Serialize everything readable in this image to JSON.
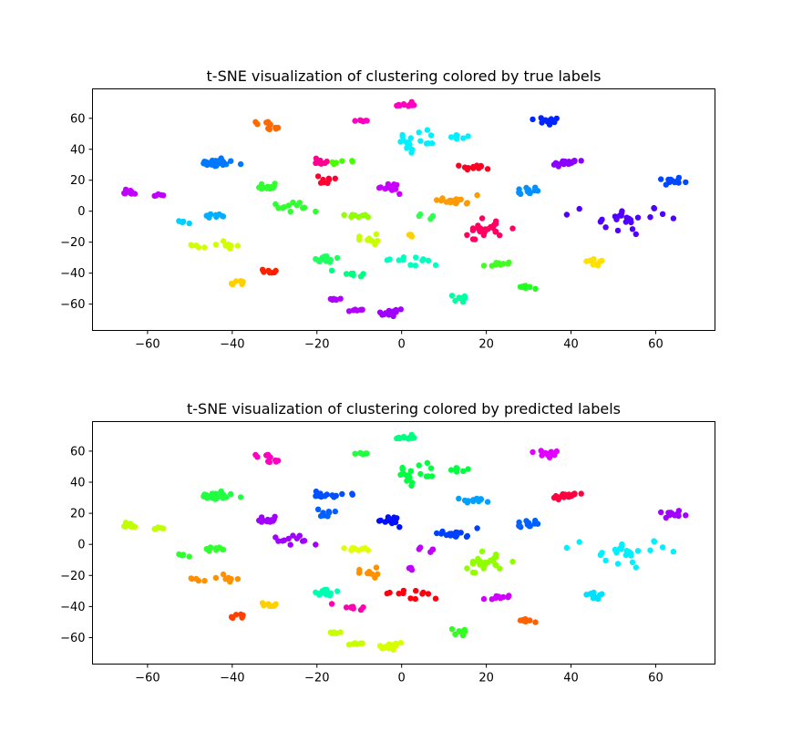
{
  "chart_data": [
    {
      "type": "scatter",
      "title": "t-SNE visualization of clustering colored by true labels",
      "xlim": [
        -73,
        74
      ],
      "ylim": [
        -77,
        79
      ],
      "xticks": [
        -60,
        -40,
        -20,
        0,
        20,
        40,
        60
      ],
      "xtick_labels": [
        "−60",
        "−40",
        "−20",
        "0",
        "20",
        "40",
        "60"
      ],
      "yticks": [
        -60,
        -40,
        -20,
        0,
        20,
        40,
        60
      ],
      "ytick_labels": [
        "−60",
        "−40",
        "−20",
        "0",
        "20",
        "40",
        "60"
      ],
      "grid": false,
      "clusters": [
        {
          "x": 1,
          "y": 69,
          "n": 10,
          "sx": 1.2,
          "sy": 1,
          "color": "#ff00c0"
        },
        {
          "x": -10,
          "y": 58,
          "n": 6,
          "sx": 1,
          "sy": 0.6,
          "color": "#ff00c0"
        },
        {
          "x": -32,
          "y": 57,
          "n": 6,
          "sx": 1,
          "sy": 0.6,
          "color": "#ff6a00"
        },
        {
          "x": -30,
          "y": 53,
          "n": 6,
          "sx": 1,
          "sy": 0.6,
          "color": "#ff6a00"
        },
        {
          "x": 3,
          "y": 46,
          "n": 18,
          "sx": 3,
          "sy": 3,
          "color": "#00f0ff"
        },
        {
          "x": 13,
          "y": 48,
          "n": 6,
          "sx": 1,
          "sy": 0.5,
          "color": "#00f0ff"
        },
        {
          "x": 34,
          "y": 59,
          "n": 10,
          "sx": 2,
          "sy": 1.5,
          "color": "#0024ff"
        },
        {
          "x": -44,
          "y": 31,
          "n": 24,
          "sx": 1.8,
          "sy": 1.5,
          "color": "#0078ff"
        },
        {
          "x": -19,
          "y": 32,
          "n": 8,
          "sx": 1,
          "sy": 1.5,
          "color": "#ff0090"
        },
        {
          "x": -14,
          "y": 32,
          "n": 6,
          "sx": 1.5,
          "sy": 1,
          "color": "#48ff00"
        },
        {
          "x": -18,
          "y": 20,
          "n": 8,
          "sx": 1.5,
          "sy": 1.5,
          "color": "#ff0030"
        },
        {
          "x": 18,
          "y": 28,
          "n": 12,
          "sx": 2,
          "sy": 1,
          "color": "#ff0020"
        },
        {
          "x": 38,
          "y": 31,
          "n": 18,
          "sx": 2,
          "sy": 1,
          "color": "#8c00ff"
        },
        {
          "x": 64,
          "y": 20,
          "n": 12,
          "sx": 2,
          "sy": 1,
          "color": "#0048ff"
        },
        {
          "x": 29,
          "y": 13,
          "n": 12,
          "sx": 2,
          "sy": 1,
          "color": "#0090ff"
        },
        {
          "x": -64,
          "y": 12,
          "n": 10,
          "sx": 1,
          "sy": 1,
          "color": "#c000ff"
        },
        {
          "x": -57,
          "y": 10,
          "n": 5,
          "sx": 0.8,
          "sy": 0.8,
          "color": "#c000ff"
        },
        {
          "x": -33,
          "y": 15,
          "n": 14,
          "sx": 2,
          "sy": 1,
          "color": "#30ff30"
        },
        {
          "x": -26,
          "y": 3,
          "n": 12,
          "sx": 2,
          "sy": 2.5,
          "color": "#30ff30"
        },
        {
          "x": -3,
          "y": 15,
          "n": 14,
          "sx": 1.5,
          "sy": 1.5,
          "color": "#c800ff"
        },
        {
          "x": 13,
          "y": 7,
          "n": 20,
          "sx": 2,
          "sy": 1.2,
          "color": "#ff9a00"
        },
        {
          "x": -11,
          "y": -3,
          "n": 10,
          "sx": 2,
          "sy": 0.8,
          "color": "#90ff00"
        },
        {
          "x": 6,
          "y": -2,
          "n": 5,
          "sx": 2,
          "sy": 1.5,
          "color": "#30ff50"
        },
        {
          "x": -51,
          "y": -7,
          "n": 5,
          "sx": 0.6,
          "sy": 0.6,
          "color": "#00d0ff"
        },
        {
          "x": -44,
          "y": -3,
          "n": 10,
          "sx": 1.5,
          "sy": 0.8,
          "color": "#00b0ff"
        },
        {
          "x": 52,
          "y": -5,
          "n": 26,
          "sx": 5,
          "sy": 4,
          "color": "#5000ff"
        },
        {
          "x": 20,
          "y": -12,
          "n": 24,
          "sx": 3,
          "sy": 3,
          "color": "#ff0060"
        },
        {
          "x": -48,
          "y": -22,
          "n": 5,
          "sx": 1,
          "sy": 0.8,
          "color": "#d0ff00"
        },
        {
          "x": -40,
          "y": -22,
          "n": 8,
          "sx": 2,
          "sy": 1,
          "color": "#d0ff00"
        },
        {
          "x": -8,
          "y": -18,
          "n": 10,
          "sx": 1.5,
          "sy": 2,
          "color": "#c8ff00"
        },
        {
          "x": 2,
          "y": -16,
          "n": 4,
          "sx": 0.5,
          "sy": 1,
          "color": "#ffd000"
        },
        {
          "x": -18,
          "y": -31,
          "n": 14,
          "sx": 1.5,
          "sy": 1,
          "color": "#20ff60"
        },
        {
          "x": 3,
          "y": -32,
          "n": 12,
          "sx": 3,
          "sy": 2.5,
          "color": "#00ffc0"
        },
        {
          "x": 23,
          "y": -34,
          "n": 10,
          "sx": 1.5,
          "sy": 0.8,
          "color": "#40ff20"
        },
        {
          "x": 46,
          "y": -33,
          "n": 10,
          "sx": 1.5,
          "sy": 1.5,
          "color": "#ffe000"
        },
        {
          "x": -31,
          "y": -39,
          "n": 8,
          "sx": 1,
          "sy": 0.6,
          "color": "#ff2000"
        },
        {
          "x": -39,
          "y": -46,
          "n": 8,
          "sx": 1,
          "sy": 0.8,
          "color": "#ffd000"
        },
        {
          "x": -12,
          "y": -40,
          "n": 8,
          "sx": 1.5,
          "sy": 1,
          "color": "#00ff80"
        },
        {
          "x": 14,
          "y": -56,
          "n": 8,
          "sx": 1,
          "sy": 1.5,
          "color": "#00ffa0"
        },
        {
          "x": 30,
          "y": -49,
          "n": 8,
          "sx": 1.2,
          "sy": 0.6,
          "color": "#20ff20"
        },
        {
          "x": -16,
          "y": -57,
          "n": 6,
          "sx": 0.8,
          "sy": 0.5,
          "color": "#b000ff"
        },
        {
          "x": -11,
          "y": -64,
          "n": 6,
          "sx": 1,
          "sy": 0.5,
          "color": "#b000ff"
        },
        {
          "x": -3,
          "y": -66,
          "n": 14,
          "sx": 1.2,
          "sy": 1.2,
          "color": "#a000ff"
        }
      ]
    },
    {
      "type": "scatter",
      "title": "t-SNE visualization of clustering colored by predicted labels",
      "xlim": [
        -73,
        74
      ],
      "ylim": [
        -77,
        79
      ],
      "xticks": [
        -60,
        -40,
        -20,
        0,
        20,
        40,
        60
      ],
      "xtick_labels": [
        "−60",
        "−40",
        "−20",
        "0",
        "20",
        "40",
        "60"
      ],
      "yticks": [
        -60,
        -40,
        -20,
        0,
        20,
        40,
        60
      ],
      "ytick_labels": [
        "−60",
        "−40",
        "−20",
        "0",
        "20",
        "40",
        "60"
      ],
      "grid": false,
      "clusters": [
        {
          "x": 1,
          "y": 69,
          "n": 10,
          "sx": 1.2,
          "sy": 1,
          "color": "#00ff80"
        },
        {
          "x": -10,
          "y": 58,
          "n": 6,
          "sx": 1,
          "sy": 0.6,
          "color": "#20ff40"
        },
        {
          "x": -32,
          "y": 57,
          "n": 6,
          "sx": 1,
          "sy": 0.6,
          "color": "#ff00c0"
        },
        {
          "x": -30,
          "y": 53,
          "n": 6,
          "sx": 1,
          "sy": 0.6,
          "color": "#ff00c0"
        },
        {
          "x": 3,
          "y": 46,
          "n": 18,
          "sx": 3,
          "sy": 3,
          "color": "#00ff40"
        },
        {
          "x": 13,
          "y": 48,
          "n": 6,
          "sx": 1,
          "sy": 0.5,
          "color": "#00ff40"
        },
        {
          "x": 34,
          "y": 59,
          "n": 10,
          "sx": 2,
          "sy": 1.5,
          "color": "#e000ff"
        },
        {
          "x": -44,
          "y": 31,
          "n": 24,
          "sx": 1.8,
          "sy": 1.5,
          "color": "#20ff40"
        },
        {
          "x": -19,
          "y": 32,
          "n": 8,
          "sx": 1,
          "sy": 1.5,
          "color": "#0050ff"
        },
        {
          "x": -14,
          "y": 32,
          "n": 6,
          "sx": 1.5,
          "sy": 1,
          "color": "#0050ff"
        },
        {
          "x": -18,
          "y": 20,
          "n": 8,
          "sx": 1.5,
          "sy": 1.5,
          "color": "#0060ff"
        },
        {
          "x": 18,
          "y": 28,
          "n": 12,
          "sx": 2,
          "sy": 1,
          "color": "#00a0ff"
        },
        {
          "x": 38,
          "y": 31,
          "n": 18,
          "sx": 2,
          "sy": 1,
          "color": "#ff0040"
        },
        {
          "x": 64,
          "y": 20,
          "n": 12,
          "sx": 2,
          "sy": 1,
          "color": "#a000ff"
        },
        {
          "x": 29,
          "y": 13,
          "n": 12,
          "sx": 2,
          "sy": 1,
          "color": "#0060ff"
        },
        {
          "x": -64,
          "y": 12,
          "n": 10,
          "sx": 1,
          "sy": 1,
          "color": "#c0ff00"
        },
        {
          "x": -57,
          "y": 10,
          "n": 5,
          "sx": 0.8,
          "sy": 0.8,
          "color": "#c0ff00"
        },
        {
          "x": -33,
          "y": 15,
          "n": 14,
          "sx": 2,
          "sy": 1,
          "color": "#a000ff"
        },
        {
          "x": -26,
          "y": 3,
          "n": 12,
          "sx": 2,
          "sy": 2.5,
          "color": "#a000ff"
        },
        {
          "x": -3,
          "y": 15,
          "n": 14,
          "sx": 1.5,
          "sy": 1.5,
          "color": "#0010ff"
        },
        {
          "x": 13,
          "y": 7,
          "n": 20,
          "sx": 2,
          "sy": 1.2,
          "color": "#0040ff"
        },
        {
          "x": -11,
          "y": -3,
          "n": 10,
          "sx": 2,
          "sy": 0.8,
          "color": "#e0ff00"
        },
        {
          "x": 6,
          "y": -2,
          "n": 5,
          "sx": 2,
          "sy": 1.5,
          "color": "#c000ff"
        },
        {
          "x": -51,
          "y": -7,
          "n": 5,
          "sx": 0.6,
          "sy": 0.6,
          "color": "#30ff30"
        },
        {
          "x": -44,
          "y": -3,
          "n": 10,
          "sx": 1.5,
          "sy": 0.8,
          "color": "#30ff30"
        },
        {
          "x": 52,
          "y": -5,
          "n": 26,
          "sx": 5,
          "sy": 4,
          "color": "#00f0ff"
        },
        {
          "x": 20,
          "y": -12,
          "n": 24,
          "sx": 3,
          "sy": 3,
          "color": "#90ff00"
        },
        {
          "x": -48,
          "y": -22,
          "n": 5,
          "sx": 1,
          "sy": 0.8,
          "color": "#ff9000"
        },
        {
          "x": -40,
          "y": -22,
          "n": 8,
          "sx": 2,
          "sy": 1,
          "color": "#ff9000"
        },
        {
          "x": -8,
          "y": -18,
          "n": 10,
          "sx": 1.5,
          "sy": 2,
          "color": "#ff9000"
        },
        {
          "x": 2,
          "y": -16,
          "n": 4,
          "sx": 0.5,
          "sy": 1,
          "color": "#c000ff"
        },
        {
          "x": -18,
          "y": -31,
          "n": 14,
          "sx": 1.5,
          "sy": 1,
          "color": "#00ffb0"
        },
        {
          "x": 3,
          "y": -32,
          "n": 12,
          "sx": 3,
          "sy": 2.5,
          "color": "#ff0010"
        },
        {
          "x": 23,
          "y": -34,
          "n": 10,
          "sx": 1.5,
          "sy": 0.8,
          "color": "#d000ff"
        },
        {
          "x": 46,
          "y": -33,
          "n": 10,
          "sx": 1.5,
          "sy": 1.5,
          "color": "#00e0ff"
        },
        {
          "x": -31,
          "y": -39,
          "n": 8,
          "sx": 1,
          "sy": 0.6,
          "color": "#ffd000"
        },
        {
          "x": -39,
          "y": -46,
          "n": 8,
          "sx": 1,
          "sy": 0.8,
          "color": "#ff4000"
        },
        {
          "x": -12,
          "y": -40,
          "n": 8,
          "sx": 1.5,
          "sy": 1,
          "color": "#ff00b0"
        },
        {
          "x": 14,
          "y": -56,
          "n": 8,
          "sx": 1,
          "sy": 1.5,
          "color": "#30ff20"
        },
        {
          "x": 30,
          "y": -49,
          "n": 8,
          "sx": 1.2,
          "sy": 0.6,
          "color": "#ff6000"
        },
        {
          "x": -16,
          "y": -57,
          "n": 6,
          "sx": 0.8,
          "sy": 0.5,
          "color": "#c8ff00"
        },
        {
          "x": -11,
          "y": -64,
          "n": 6,
          "sx": 1,
          "sy": 0.5,
          "color": "#c8ff00"
        },
        {
          "x": -3,
          "y": -66,
          "n": 14,
          "sx": 1.2,
          "sy": 1.2,
          "color": "#d8ff00"
        }
      ]
    }
  ]
}
